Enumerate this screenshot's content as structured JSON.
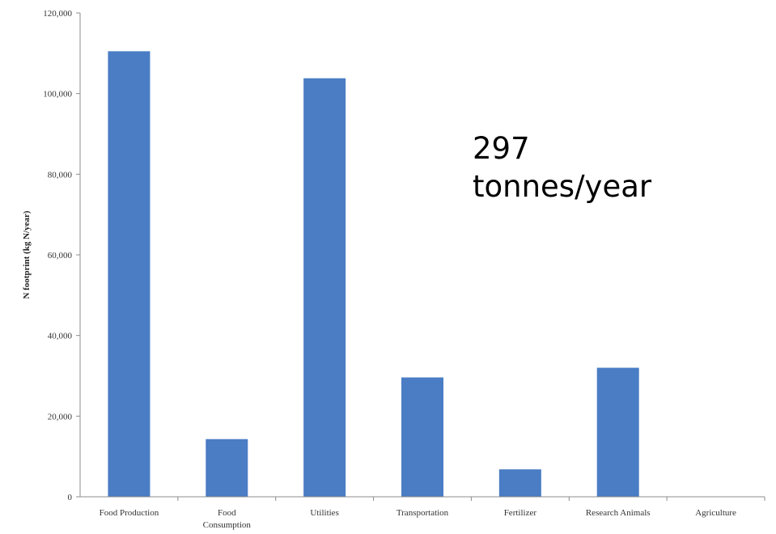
{
  "chart_data": {
    "type": "bar",
    "categories": [
      "Food Production",
      "Food Consumption",
      "Utilities",
      "Transportation",
      "Fertilizer",
      "Research Animals",
      "Agriculture"
    ],
    "category_lines": [
      [
        "Food Production"
      ],
      [
        "Food",
        "Consumption"
      ],
      [
        "Utilities"
      ],
      [
        "Transportation"
      ],
      [
        "Fertilizer"
      ],
      [
        "Research Animals"
      ],
      [
        "Agriculture"
      ]
    ],
    "values": [
      110500,
      14300,
      103800,
      29600,
      6800,
      32000,
      0
    ],
    "ylabel": "N footprint (kg N/year)",
    "ylim": [
      0,
      120000
    ],
    "yticks": [
      0,
      20000,
      40000,
      60000,
      80000,
      100000,
      120000
    ],
    "ytick_labels": [
      "0",
      "20,000",
      "40,000",
      "60,000",
      "80,000",
      "100,000",
      "120,000"
    ],
    "grid": false,
    "bar_color": "#4a7dc4",
    "annotation": {
      "line1": "297",
      "line2": "tonnes/year"
    }
  }
}
